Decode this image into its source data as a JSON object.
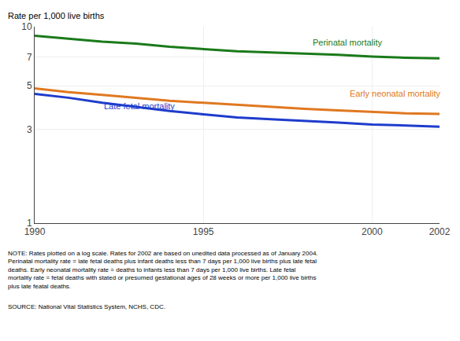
{
  "chart_data": {
    "type": "line",
    "ylabel": "Rate per 1,000 live births",
    "x": [
      1990,
      1991,
      1992,
      1993,
      1994,
      1995,
      1996,
      1997,
      1998,
      1999,
      2000,
      2001,
      2002
    ],
    "series": [
      {
        "color": "#1a7a1a",
        "values": [
          9.0,
          8.7,
          8.4,
          8.2,
          7.9,
          7.7,
          7.5,
          7.4,
          7.3,
          7.2,
          7.05,
          6.95,
          6.9
        ]
      },
      {
        "color": "#e07820",
        "values": [
          4.85,
          4.65,
          4.5,
          4.35,
          4.2,
          4.1,
          4.0,
          3.9,
          3.82,
          3.75,
          3.68,
          3.62,
          3.6
        ]
      },
      {
        "color": "#1e3ccc",
        "values": [
          4.55,
          4.35,
          4.1,
          3.9,
          3.72,
          3.58,
          3.45,
          3.38,
          3.32,
          3.25,
          3.18,
          3.15,
          3.1
        ]
      }
    ],
    "annotations": [
      {
        "text": "Perinatal mortality",
        "x": 1998.2,
        "y": 7.75,
        "color": "#1a7a1a"
      },
      {
        "text": "Early neonatal mortality",
        "x": 1999.3,
        "y": 4.25,
        "color": "#e07820"
      },
      {
        "text": "Late fetal mortality",
        "x": 1992.0,
        "y": 3.65,
        "color": "#1e3ccc"
      }
    ],
    "log": "y",
    "ylim": [
      1,
      10
    ],
    "yticks": [
      1,
      3,
      5,
      7,
      10
    ],
    "xlim": [
      1990,
      2002
    ],
    "xticks": [
      1990,
      1995,
      2000,
      2002
    ],
    "grid": true,
    "notes": [
      "NOTE: Rates plotted on a log scale. Rates for 2002 are based on unedited data processed as of January 2004.",
      "Perinatal mortality rate = late fetal deaths plus infant deaths less than 7 days per 1,000 live births plus late fetal",
      "deaths. Early neonatal mortality rate = deaths to infants less than 7 days per 1,000 live births. Late fetal",
      "mortality rate = fetal deaths with stated or presumed gestational ages of 28 weeks or more per 1,000 live births",
      "plus late featal deaths."
    ],
    "source": "SOURCE: National Vital Statistics System, NCHS, CDC."
  }
}
